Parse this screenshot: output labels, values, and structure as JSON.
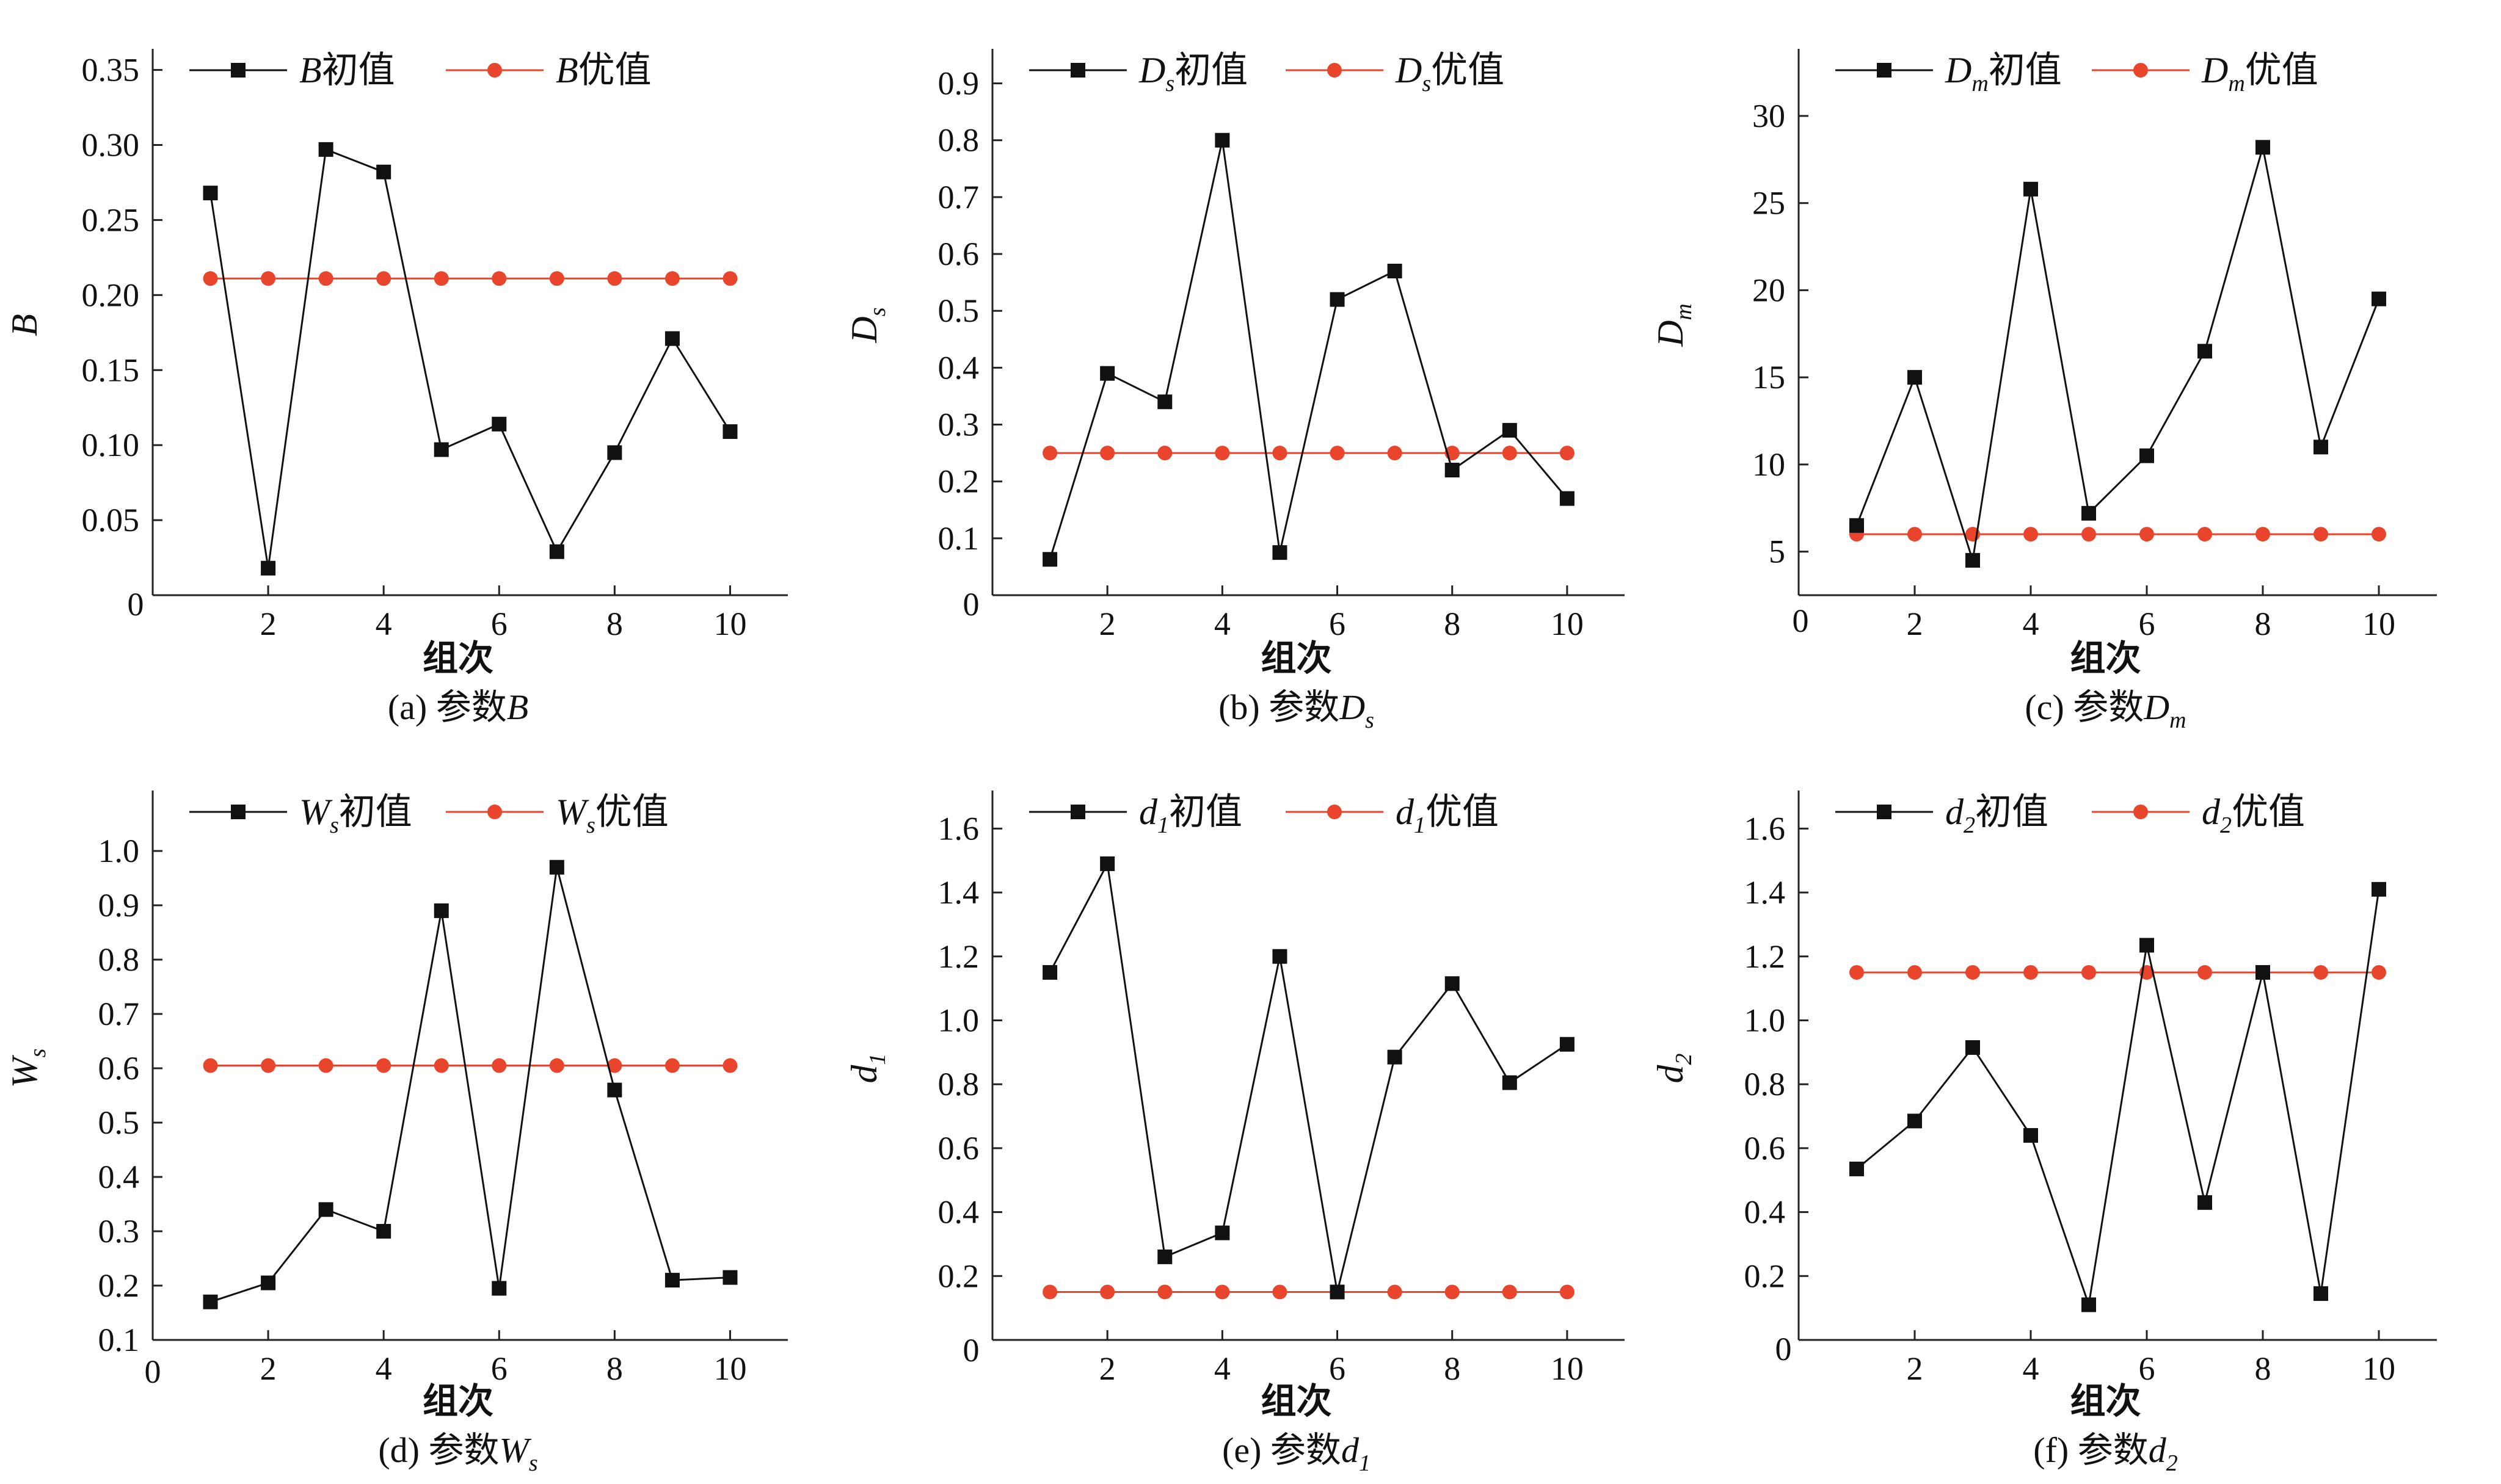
{
  "colors": {
    "initial": "#111111",
    "optimal": "#e8452c",
    "axis": "#222222"
  },
  "chart_data": [
    {
      "id": "B",
      "type": "line",
      "caption_prefix": "(a) 参数",
      "caption_var": "B",
      "caption_sub": "",
      "xlabel": "组次",
      "y_var": "B",
      "y_sub": "",
      "legend_initial": {
        "var": "B",
        "sub": "",
        "suffix": "初值"
      },
      "legend_optimal": {
        "var": "B",
        "sub": "",
        "suffix": "优值"
      },
      "xlim": [
        0,
        11
      ],
      "xticks": [
        "2",
        "4",
        "6",
        "8",
        "10"
      ],
      "xtick_values": [
        2,
        4,
        6,
        8,
        10
      ],
      "ylim": [
        0,
        0.36
      ],
      "yticks": [
        "0.05",
        "0.10",
        "0.15",
        "0.20",
        "0.25",
        "0.30",
        "0.35"
      ],
      "ytick_values": [
        0.05,
        0.1,
        0.15,
        0.2,
        0.25,
        0.3,
        0.35
      ],
      "x": [
        1,
        2,
        3,
        4,
        5,
        6,
        7,
        8,
        9,
        10
      ],
      "series": [
        {
          "name": "B初值",
          "marker": "square",
          "values": [
            0.268,
            0.018,
            0.297,
            0.282,
            0.097,
            0.114,
            0.029,
            0.095,
            0.171,
            0.109
          ]
        },
        {
          "name": "B优值",
          "marker": "circle",
          "values": [
            0.211,
            0.211,
            0.211,
            0.211,
            0.211,
            0.211,
            0.211,
            0.211,
            0.211,
            0.211
          ]
        }
      ]
    },
    {
      "id": "Ds",
      "type": "line",
      "caption_prefix": "(b) 参数",
      "caption_var": "D",
      "caption_sub": "s",
      "xlabel": "组次",
      "y_var": "D",
      "y_sub": "s",
      "legend_initial": {
        "var": "D",
        "sub": "s",
        "suffix": "初值"
      },
      "legend_optimal": {
        "var": "D",
        "sub": "s",
        "suffix": "优值"
      },
      "xlim": [
        0,
        11
      ],
      "xticks": [
        "2",
        "4",
        "6",
        "8",
        "10"
      ],
      "xtick_values": [
        2,
        4,
        6,
        8,
        10
      ],
      "ylim": [
        0,
        0.95
      ],
      "yticks": [
        "0.1",
        "0.2",
        "0.3",
        "0.4",
        "0.5",
        "0.6",
        "0.7",
        "0.8",
        "0.9"
      ],
      "ytick_values": [
        0.1,
        0.2,
        0.3,
        0.4,
        0.5,
        0.6,
        0.7,
        0.8,
        0.9
      ],
      "x": [
        1,
        2,
        3,
        4,
        5,
        6,
        7,
        8,
        9,
        10
      ],
      "series": [
        {
          "name": "Ds初值",
          "marker": "square",
          "values": [
            0.063,
            0.39,
            0.34,
            0.8,
            0.075,
            0.52,
            0.57,
            0.22,
            0.29,
            0.17
          ]
        },
        {
          "name": "Ds优值",
          "marker": "circle",
          "values": [
            0.25,
            0.25,
            0.25,
            0.25,
            0.25,
            0.25,
            0.25,
            0.25,
            0.25,
            0.25
          ]
        }
      ]
    },
    {
      "id": "Dm",
      "type": "line",
      "caption_prefix": "(c) 参数",
      "caption_var": "D",
      "caption_sub": "m",
      "xlabel": "组次",
      "y_var": "D",
      "y_sub": "m",
      "legend_initial": {
        "var": "D",
        "sub": "m",
        "suffix": "初值"
      },
      "legend_optimal": {
        "var": "D",
        "sub": "m",
        "suffix": "优值"
      },
      "xlim": [
        0,
        11
      ],
      "xticks": [
        "2",
        "4",
        "6",
        "8",
        "10"
      ],
      "xtick_values": [
        2,
        4,
        6,
        8,
        10
      ],
      "ylim": [
        2.5,
        33.5
      ],
      "yticks": [
        "5",
        "10",
        "15",
        "20",
        "25",
        "30"
      ],
      "ytick_values": [
        5,
        10,
        15,
        20,
        25,
        30
      ],
      "x": [
        1,
        2,
        3,
        4,
        5,
        6,
        7,
        8,
        9,
        10
      ],
      "series": [
        {
          "name": "Dm初值",
          "marker": "square",
          "values": [
            6.5,
            15.0,
            4.5,
            25.8,
            7.2,
            10.5,
            16.5,
            28.2,
            11.0,
            19.5
          ]
        },
        {
          "name": "Dm优值",
          "marker": "circle",
          "values": [
            6.0,
            6.0,
            6.0,
            6.0,
            6.0,
            6.0,
            6.0,
            6.0,
            6.0,
            6.0
          ]
        }
      ]
    },
    {
      "id": "Ws",
      "type": "line",
      "caption_prefix": "(d) 参数",
      "caption_var": "W",
      "caption_sub": "s",
      "xlabel": "组次",
      "y_var": "W",
      "y_sub": "s",
      "legend_initial": {
        "var": "W",
        "sub": "s",
        "suffix": "初值"
      },
      "legend_optimal": {
        "var": "W",
        "sub": "s",
        "suffix": "优值"
      },
      "xlim": [
        0,
        11
      ],
      "xticks": [
        "2",
        "4",
        "6",
        "8",
        "10"
      ],
      "xtick_values": [
        2,
        4,
        6,
        8,
        10
      ],
      "ylim": [
        0.1,
        1.1
      ],
      "yticks": [
        "0.1",
        "0.2",
        "0.3",
        "0.4",
        "0.5",
        "0.6",
        "0.7",
        "0.8",
        "0.9",
        "1.0"
      ],
      "ytick_values": [
        0.1,
        0.2,
        0.3,
        0.4,
        0.5,
        0.6,
        0.7,
        0.8,
        0.9,
        1.0
      ],
      "x": [
        1,
        2,
        3,
        4,
        5,
        6,
        7,
        8,
        9,
        10
      ],
      "series": [
        {
          "name": "Ws初值",
          "marker": "square",
          "values": [
            0.17,
            0.205,
            0.34,
            0.3,
            0.89,
            0.195,
            0.97,
            0.56,
            0.21,
            0.215
          ]
        },
        {
          "name": "Ws优值",
          "marker": "circle",
          "values": [
            0.605,
            0.605,
            0.605,
            0.605,
            0.605,
            0.605,
            0.605,
            0.605,
            0.605,
            0.605
          ]
        }
      ]
    },
    {
      "id": "d1",
      "type": "line",
      "caption_prefix": "(e) 参数",
      "caption_var": "d",
      "caption_sub": "1",
      "xlabel": "组次",
      "y_var": "d",
      "y_sub": "1",
      "legend_initial": {
        "var": "d",
        "sub": "1",
        "suffix": "初值"
      },
      "legend_optimal": {
        "var": "d",
        "sub": "1",
        "suffix": "优值"
      },
      "xlim": [
        0,
        11
      ],
      "xticks": [
        "2",
        "4",
        "6",
        "8",
        "10"
      ],
      "xtick_values": [
        2,
        4,
        6,
        8,
        10
      ],
      "ylim": [
        0,
        1.7
      ],
      "yticks": [
        "0.2",
        "0.4",
        "0.6",
        "0.8",
        "1.0",
        "1.2",
        "1.4",
        "1.6"
      ],
      "ytick_values": [
        0.2,
        0.4,
        0.6,
        0.8,
        1.0,
        1.2,
        1.4,
        1.6
      ],
      "x": [
        1,
        2,
        3,
        4,
        5,
        6,
        7,
        8,
        9,
        10
      ],
      "series": [
        {
          "name": "d1初值",
          "marker": "square",
          "values": [
            1.15,
            1.49,
            0.26,
            0.335,
            1.2,
            0.15,
            0.885,
            1.115,
            0.805,
            0.925
          ]
        },
        {
          "name": "d1优值",
          "marker": "circle",
          "values": [
            0.15,
            0.15,
            0.15,
            0.15,
            0.15,
            0.15,
            0.15,
            0.15,
            0.15,
            0.15
          ]
        }
      ]
    },
    {
      "id": "d2",
      "type": "line",
      "caption_prefix": "(f) 参数",
      "caption_var": "d",
      "caption_sub": "2",
      "xlabel": "组次",
      "y_var": "d",
      "y_sub": "2",
      "legend_initial": {
        "var": "d",
        "sub": "2",
        "suffix": "初值"
      },
      "legend_optimal": {
        "var": "d",
        "sub": "2",
        "suffix": "优值"
      },
      "xlim": [
        0,
        11
      ],
      "xticks": [
        "2",
        "4",
        "6",
        "8",
        "10"
      ],
      "xtick_values": [
        2,
        4,
        6,
        8,
        10
      ],
      "ylim": [
        0,
        1.7
      ],
      "yticks": [
        "0.2",
        "0.4",
        "0.6",
        "0.8",
        "1.0",
        "1.2",
        "1.4",
        "1.6"
      ],
      "ytick_values": [
        0.2,
        0.4,
        0.6,
        0.8,
        1.0,
        1.2,
        1.4,
        1.6
      ],
      "x": [
        1,
        2,
        3,
        4,
        5,
        6,
        7,
        8,
        9,
        10
      ],
      "series": [
        {
          "name": "d2初值",
          "marker": "square",
          "values": [
            0.535,
            0.685,
            0.915,
            0.64,
            0.11,
            1.235,
            0.43,
            1.15,
            0.145,
            1.41
          ]
        },
        {
          "name": "d2优值",
          "marker": "circle",
          "values": [
            1.15,
            1.15,
            1.15,
            1.15,
            1.15,
            1.15,
            1.15,
            1.15,
            1.15,
            1.15
          ]
        }
      ]
    }
  ]
}
